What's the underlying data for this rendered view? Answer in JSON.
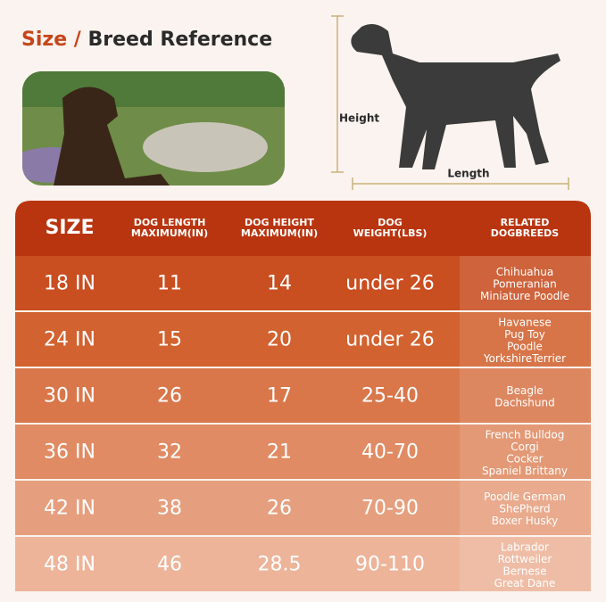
{
  "header": {
    "title": {
      "highlight": "Size",
      "separator": "/",
      "rest": "Breed Reference"
    }
  },
  "diagram": {
    "height_label": "Height",
    "length_label": "Length"
  },
  "table": {
    "headers": [
      [
        "SIZE"
      ],
      [
        "DOG LENGTH",
        "MAXIMUM(IN)"
      ],
      [
        "DOG HEIGHT",
        "MAXIMUM(IN)"
      ],
      [
        "DOG",
        "WEIGHT(LBS)"
      ],
      [
        "RELATED",
        "DOGBREEDS"
      ]
    ],
    "rows": [
      [
        "18 IN",
        11,
        14,
        "under 26",
        [
          "Chihuahua",
          "Pomeranian",
          "Miniature Poodle"
        ]
      ],
      [
        "24 IN",
        15,
        20,
        "under 26",
        [
          "Havanese",
          "Pug Toy",
          "Poodle",
          "YorkshireTerrier"
        ]
      ],
      [
        "30 IN",
        26,
        17,
        "25-40",
        [
          "Beagle",
          "Dachshund"
        ]
      ],
      [
        "36 IN",
        32,
        21,
        "40-70",
        [
          "French Bulldog",
          "Corgi",
          "Cocker",
          "Spaniel Brittany"
        ]
      ],
      [
        "42 IN",
        38,
        26,
        "70-90",
        [
          "Poodle German",
          "ShePherd",
          "Boxer Husky"
        ]
      ],
      [
        "48 IN",
        46,
        28.5,
        "90-110",
        [
          "Labrador",
          "Rottweiler",
          "Bernese",
          "Great Dane"
        ]
      ]
    ]
  }
}
